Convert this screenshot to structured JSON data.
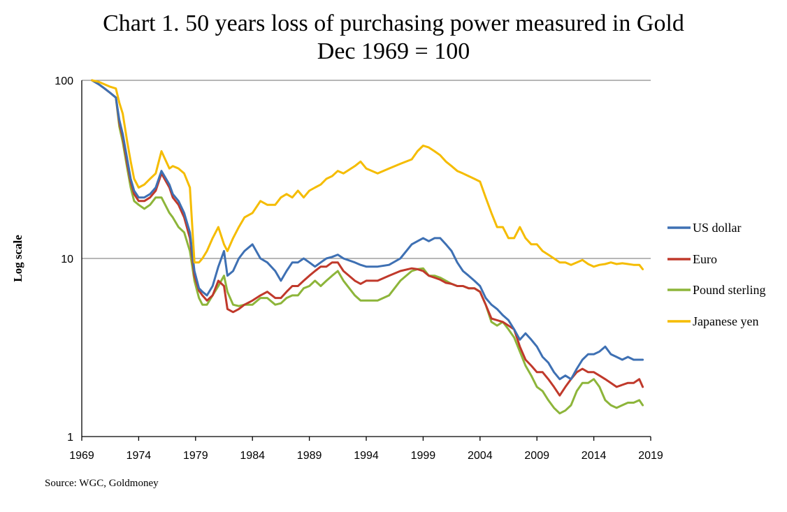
{
  "chart_data": {
    "type": "line",
    "title_line1": "Chart 1. 50 years loss of purchasing power measured in Gold",
    "title_line2": "Dec 1969 = 100",
    "ylabel": "Log scale",
    "yscale": "log",
    "ylim": [
      1,
      100
    ],
    "xlim": [
      1969,
      2019
    ],
    "x_ticks": [
      "1969",
      "1974",
      "1979",
      "1984",
      "1989",
      "1994",
      "1999",
      "2004",
      "2009",
      "2014",
      "2019"
    ],
    "y_ticks": [
      "100",
      "10",
      "1"
    ],
    "legend_position": "right",
    "source": "Source: WGC, Goldmoney",
    "x": [
      1969.9,
      1970.5,
      1971,
      1971.5,
      1972,
      1972.3,
      1972.6,
      1973,
      1973.3,
      1973.6,
      1974,
      1974.5,
      1975,
      1975.5,
      1976,
      1976.7,
      1977,
      1977.5,
      1978,
      1978.5,
      1978.9,
      1979.3,
      1979.6,
      1980,
      1980.5,
      1981,
      1981.5,
      1981.8,
      1982.3,
      1982.8,
      1983.3,
      1984,
      1984.7,
      1985.3,
      1986,
      1986.5,
      1987,
      1987.5,
      1988,
      1988.5,
      1989,
      1989.5,
      1990,
      1990.5,
      1991,
      1991.5,
      1992,
      1993,
      1993.5,
      1994,
      1995,
      1996,
      1997,
      1998,
      1998.5,
      1999,
      1999.5,
      2000,
      2000.5,
      2001,
      2001.5,
      2002,
      2002.5,
      2003,
      2003.5,
      2004,
      2004.5,
      2005,
      2005.5,
      2006,
      2006.5,
      2007,
      2007.5,
      2008,
      2008.5,
      2009,
      2009.5,
      2010,
      2010.5,
      2011,
      2011.5,
      2012,
      2012.5,
      2013,
      2013.5,
      2014,
      2014.5,
      2015,
      2015.5,
      2016,
      2016.5,
      2017,
      2017.5,
      2018,
      2018.3
    ],
    "series": [
      {
        "name": "US dollar",
        "color": "#3E70B3",
        "values": [
          100,
          95,
          90,
          85,
          80,
          60,
          50,
          36,
          28,
          24,
          22,
          22,
          23,
          25,
          31,
          26,
          23,
          21,
          18,
          14,
          8.5,
          6.8,
          6.5,
          6.2,
          7.0,
          9.0,
          11,
          8,
          8.5,
          10,
          11,
          12,
          10,
          9.5,
          8.5,
          7.5,
          8.5,
          9.5,
          9.5,
          10,
          9.5,
          9.0,
          9.5,
          10,
          10.2,
          10.5,
          10,
          9.5,
          9.2,
          9,
          9,
          9.2,
          10,
          12,
          12.5,
          13,
          12.5,
          13,
          13,
          12,
          11,
          9.5,
          8.5,
          8,
          7.5,
          7,
          6,
          5.5,
          5.2,
          4.8,
          4.5,
          4,
          3.5,
          3.8,
          3.5,
          3.2,
          2.8,
          2.6,
          2.3,
          2.1,
          2.2,
          2.1,
          2.4,
          2.7,
          2.9,
          2.9,
          3.0,
          3.2,
          2.9,
          2.8,
          2.7,
          2.8,
          2.7,
          2.7,
          2.7
        ]
      },
      {
        "name": "Euro",
        "color": "#C0392B",
        "values": [
          100,
          95,
          90,
          85,
          80,
          58,
          48,
          34,
          27,
          23,
          21,
          21,
          22,
          24,
          30,
          25,
          22,
          20,
          17,
          13,
          8,
          6.6,
          6.2,
          5.8,
          6.2,
          7.5,
          7,
          5.2,
          5.0,
          5.2,
          5.5,
          5.8,
          6.2,
          6.5,
          6.0,
          6.0,
          6.5,
          7.0,
          7.0,
          7.5,
          8.0,
          8.5,
          9.0,
          9.0,
          9.5,
          9.5,
          8.5,
          7.5,
          7.2,
          7.5,
          7.5,
          8.0,
          8.5,
          8.8,
          8.7,
          8.5,
          8.0,
          7.8,
          7.6,
          7.3,
          7.2,
          7.0,
          7.0,
          6.8,
          6.8,
          6.5,
          5.5,
          4.6,
          4.5,
          4.4,
          4.2,
          4.0,
          3.2,
          2.7,
          2.5,
          2.3,
          2.3,
          2.1,
          1.9,
          1.7,
          1.9,
          2.1,
          2.3,
          2.4,
          2.3,
          2.3,
          2.2,
          2.1,
          2.0,
          1.9,
          1.95,
          2.0,
          2.0,
          2.1,
          1.9
        ]
      },
      {
        "name": "Pound sterling",
        "color": "#8DB53A",
        "values": [
          100,
          95,
          90,
          85,
          80,
          55,
          45,
          32,
          25,
          21,
          20,
          19,
          20,
          22,
          22,
          18,
          17,
          15,
          14,
          11,
          7.5,
          6.0,
          5.5,
          5.5,
          6.2,
          7.0,
          8.0,
          6.5,
          5.5,
          5.4,
          5.5,
          5.5,
          6.0,
          6.0,
          5.5,
          5.6,
          6.0,
          6.2,
          6.2,
          6.8,
          7.0,
          7.5,
          7.0,
          7.5,
          8.0,
          8.5,
          7.5,
          6.2,
          5.8,
          5.8,
          5.8,
          6.2,
          7.5,
          8.5,
          8.7,
          8.8,
          8.0,
          8.0,
          7.8,
          7.5,
          7.2,
          7.0,
          7.0,
          6.8,
          6.8,
          6.5,
          5.5,
          4.4,
          4.2,
          4.4,
          4.0,
          3.6,
          3.0,
          2.5,
          2.2,
          1.9,
          1.8,
          1.6,
          1.45,
          1.35,
          1.4,
          1.5,
          1.8,
          2.0,
          2.0,
          2.1,
          1.9,
          1.6,
          1.5,
          1.45,
          1.5,
          1.55,
          1.55,
          1.6,
          1.5
        ]
      },
      {
        "name": "Japanese yen",
        "color": "#F5BC00",
        "values": [
          100,
          98,
          95,
          92,
          90,
          75,
          65,
          45,
          35,
          28,
          25,
          26,
          28,
          30,
          40,
          32,
          33,
          32,
          30,
          25,
          9.5,
          9.5,
          10,
          11,
          13,
          15,
          12,
          11,
          13,
          15,
          17,
          18,
          21,
          20,
          20,
          22,
          23,
          22,
          24,
          22,
          24,
          25,
          26,
          28,
          29,
          31,
          30,
          33,
          35,
          32,
          30,
          32,
          34,
          36,
          40,
          43,
          42,
          40,
          38,
          35,
          33,
          31,
          30,
          29,
          28,
          27,
          22,
          18,
          15,
          15,
          13,
          13,
          15,
          13,
          12,
          12,
          11,
          10.5,
          10,
          9.5,
          9.5,
          9.2,
          9.5,
          9.8,
          9.3,
          9.0,
          9.2,
          9.3,
          9.5,
          9.3,
          9.4,
          9.3,
          9.2,
          9.2,
          8.7
        ]
      }
    ]
  }
}
